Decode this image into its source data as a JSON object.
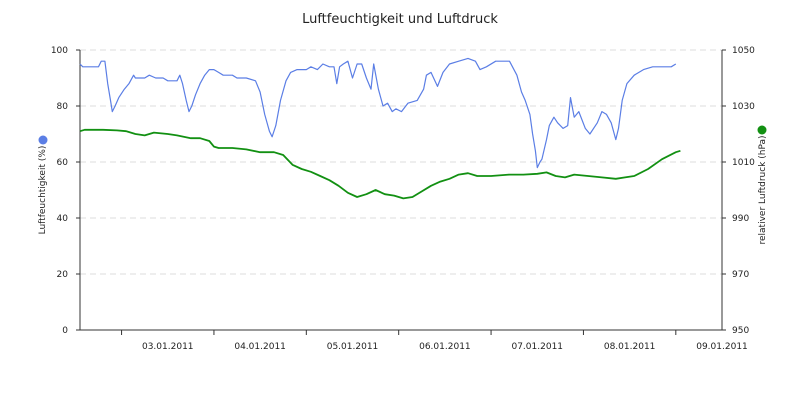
{
  "chart_data": {
    "type": "line",
    "title": "Luftfeuchtigkeit und Luftdruck",
    "ylabel": "Luftfeuchtigkeit (%)",
    "ylabel_right": "relativer Luftdruck (hPa)",
    "x_tick_labels": [
      "03.01.2011",
      "04.01.2011",
      "05.01.2011",
      "06.01.2011",
      "07.01.2011",
      "08.01.2011",
      "09.01.2011"
    ],
    "xlim_days": [
      2.55,
      9.5
    ],
    "ylim": [
      0,
      100
    ],
    "y_ticks": [
      "0",
      "20",
      "40",
      "60",
      "80",
      "100"
    ],
    "ylim_right": [
      950,
      1050
    ],
    "y_ticks_right": [
      "950",
      "970",
      "990",
      "1010",
      "1030",
      "1050"
    ],
    "grid": true,
    "series": [
      {
        "name": "Luftfeuchtigkeit",
        "axis": "left",
        "color": "#5b7ee5",
        "points": [
          [
            2.55,
            95
          ],
          [
            2.58,
            94
          ],
          [
            2.75,
            94
          ],
          [
            2.78,
            96
          ],
          [
            2.82,
            96
          ],
          [
            2.85,
            88
          ],
          [
            2.88,
            82
          ],
          [
            2.9,
            78
          ],
          [
            2.93,
            80
          ],
          [
            2.97,
            83
          ],
          [
            3.03,
            86
          ],
          [
            3.08,
            88
          ],
          [
            3.13,
            91
          ],
          [
            3.15,
            90
          ],
          [
            3.25,
            90
          ],
          [
            3.3,
            91
          ],
          [
            3.37,
            90
          ],
          [
            3.45,
            90
          ],
          [
            3.5,
            89
          ],
          [
            3.6,
            89
          ],
          [
            3.63,
            91
          ],
          [
            3.66,
            88
          ],
          [
            3.7,
            82
          ],
          [
            3.73,
            78
          ],
          [
            3.76,
            80
          ],
          [
            3.8,
            84
          ],
          [
            3.85,
            88
          ],
          [
            3.9,
            91
          ],
          [
            3.95,
            93
          ],
          [
            4.0,
            93
          ],
          [
            4.05,
            92
          ],
          [
            4.1,
            91
          ],
          [
            4.2,
            91
          ],
          [
            4.25,
            90
          ],
          [
            4.35,
            90
          ],
          [
            4.45,
            89
          ],
          [
            4.5,
            85
          ],
          [
            4.55,
            77
          ],
          [
            4.6,
            71
          ],
          [
            4.63,
            69
          ],
          [
            4.67,
            73
          ],
          [
            4.72,
            82
          ],
          [
            4.78,
            89
          ],
          [
            4.83,
            92
          ],
          [
            4.9,
            93
          ],
          [
            5.0,
            93
          ],
          [
            5.05,
            94
          ],
          [
            5.12,
            93
          ],
          [
            5.18,
            95
          ],
          [
            5.25,
            94
          ],
          [
            5.3,
            94
          ],
          [
            5.33,
            88
          ],
          [
            5.36,
            94
          ],
          [
            5.4,
            95
          ],
          [
            5.45,
            96
          ],
          [
            5.5,
            90
          ],
          [
            5.55,
            95
          ],
          [
            5.6,
            95
          ],
          [
            5.65,
            90
          ],
          [
            5.7,
            86
          ],
          [
            5.73,
            95
          ],
          [
            5.78,
            86
          ],
          [
            5.83,
            80
          ],
          [
            5.88,
            81
          ],
          [
            5.93,
            78
          ],
          [
            5.97,
            79
          ],
          [
            6.03,
            78
          ],
          [
            6.1,
            81
          ],
          [
            6.2,
            82
          ],
          [
            6.27,
            86
          ],
          [
            6.3,
            91
          ],
          [
            6.35,
            92
          ],
          [
            6.42,
            87
          ],
          [
            6.48,
            92
          ],
          [
            6.55,
            95
          ],
          [
            6.65,
            96
          ],
          [
            6.75,
            97
          ],
          [
            6.83,
            96
          ],
          [
            6.88,
            93
          ],
          [
            6.95,
            94
          ],
          [
            7.05,
            96
          ],
          [
            7.2,
            96
          ],
          [
            7.28,
            91
          ],
          [
            7.33,
            85
          ],
          [
            7.37,
            82
          ],
          [
            7.42,
            77
          ],
          [
            7.45,
            70
          ],
          [
            7.48,
            64
          ],
          [
            7.5,
            58
          ],
          [
            7.53,
            60
          ],
          [
            7.55,
            61
          ],
          [
            7.6,
            68
          ],
          [
            7.63,
            73
          ],
          [
            7.68,
            76
          ],
          [
            7.72,
            74
          ],
          [
            7.78,
            72
          ],
          [
            7.83,
            73
          ],
          [
            7.86,
            83
          ],
          [
            7.9,
            76
          ],
          [
            7.95,
            78
          ],
          [
            8.02,
            72
          ],
          [
            8.07,
            70
          ],
          [
            8.15,
            74
          ],
          [
            8.2,
            78
          ],
          [
            8.25,
            77
          ],
          [
            8.3,
            74
          ],
          [
            8.35,
            68
          ],
          [
            8.38,
            72
          ],
          [
            8.42,
            82
          ],
          [
            8.47,
            88
          ],
          [
            8.55,
            91
          ],
          [
            8.65,
            93
          ],
          [
            8.75,
            94
          ],
          [
            8.95,
            94
          ],
          [
            9.0,
            95
          ]
        ]
      },
      {
        "name": "relativer Luftdruck",
        "axis": "right",
        "color": "#129012",
        "points": [
          [
            2.55,
            1021
          ],
          [
            2.6,
            1021.5
          ],
          [
            2.8,
            1021.5
          ],
          [
            2.95,
            1021.3
          ],
          [
            3.05,
            1021
          ],
          [
            3.15,
            1020
          ],
          [
            3.25,
            1019.5
          ],
          [
            3.3,
            1020
          ],
          [
            3.35,
            1020.5
          ],
          [
            3.5,
            1020
          ],
          [
            3.6,
            1019.5
          ],
          [
            3.75,
            1018.5
          ],
          [
            3.85,
            1018.5
          ],
          [
            3.95,
            1017.5
          ],
          [
            4.0,
            1015.5
          ],
          [
            4.05,
            1015
          ],
          [
            4.2,
            1015
          ],
          [
            4.35,
            1014.5
          ],
          [
            4.5,
            1013.5
          ],
          [
            4.65,
            1013.5
          ],
          [
            4.75,
            1012.5
          ],
          [
            4.85,
            1009
          ],
          [
            4.95,
            1007.5
          ],
          [
            5.05,
            1006.5
          ],
          [
            5.15,
            1005
          ],
          [
            5.25,
            1003.5
          ],
          [
            5.35,
            1001.5
          ],
          [
            5.45,
            999
          ],
          [
            5.55,
            997.5
          ],
          [
            5.65,
            998.5
          ],
          [
            5.75,
            1000
          ],
          [
            5.85,
            998.5
          ],
          [
            5.95,
            998
          ],
          [
            6.05,
            997
          ],
          [
            6.15,
            997.5
          ],
          [
            6.25,
            999.5
          ],
          [
            6.35,
            1001.5
          ],
          [
            6.45,
            1003
          ],
          [
            6.55,
            1004
          ],
          [
            6.65,
            1005.5
          ],
          [
            6.75,
            1006
          ],
          [
            6.85,
            1005
          ],
          [
            7.0,
            1005
          ],
          [
            7.2,
            1005.5
          ],
          [
            7.35,
            1005.5
          ],
          [
            7.5,
            1005.8
          ],
          [
            7.6,
            1006.3
          ],
          [
            7.7,
            1005
          ],
          [
            7.8,
            1004.5
          ],
          [
            7.9,
            1005.5
          ],
          [
            8.05,
            1005
          ],
          [
            8.2,
            1004.5
          ],
          [
            8.35,
            1004
          ],
          [
            8.45,
            1004.5
          ],
          [
            8.55,
            1005
          ],
          [
            8.7,
            1007.5
          ],
          [
            8.85,
            1011
          ],
          [
            9.0,
            1013.5
          ],
          [
            9.05,
            1014
          ]
        ]
      }
    ]
  }
}
